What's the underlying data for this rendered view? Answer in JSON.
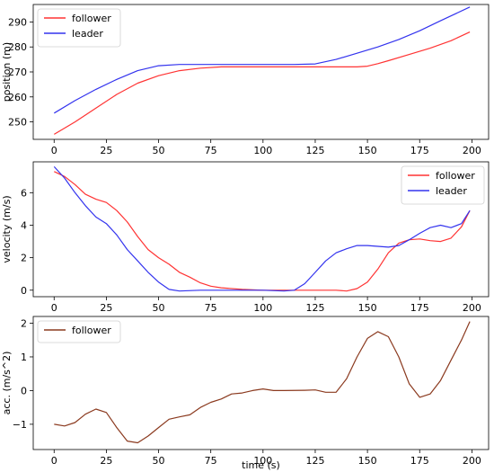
{
  "chart_data": [
    {
      "type": "line",
      "xlabel": "",
      "ylabel": "position (m)",
      "xlim": [
        -10,
        208
      ],
      "ylim": [
        243,
        297
      ],
      "xticks": [
        0,
        25,
        50,
        75,
        100,
        125,
        150,
        175,
        200
      ],
      "yticks": [
        250,
        260,
        270,
        280,
        290
      ],
      "legend_position": "top-left",
      "series": [
        {
          "name": "follower",
          "color": "#ff3333",
          "points": [
            [
              0,
              245
            ],
            [
              10,
              250
            ],
            [
              20,
              255.5
            ],
            [
              30,
              261
            ],
            [
              40,
              265.5
            ],
            [
              50,
              268.5
            ],
            [
              60,
              270.5
            ],
            [
              70,
              271.5
            ],
            [
              80,
              272
            ],
            [
              100,
              272
            ],
            [
              125,
              272
            ],
            [
              145,
              272
            ],
            [
              150,
              272.3
            ],
            [
              155,
              273.3
            ],
            [
              160,
              274.5
            ],
            [
              170,
              277
            ],
            [
              180,
              279.5
            ],
            [
              190,
              282.5
            ],
            [
              199,
              286
            ]
          ]
        },
        {
          "name": "leader",
          "color": "#3333ee",
          "points": [
            [
              0,
              253.5
            ],
            [
              10,
              258.5
            ],
            [
              20,
              263
            ],
            [
              30,
              267
            ],
            [
              40,
              270.5
            ],
            [
              50,
              272.5
            ],
            [
              60,
              273
            ],
            [
              80,
              273
            ],
            [
              100,
              273
            ],
            [
              115,
              273
            ],
            [
              125,
              273.2
            ],
            [
              135,
              275
            ],
            [
              145,
              277.5
            ],
            [
              155,
              280
            ],
            [
              165,
              283
            ],
            [
              175,
              286.5
            ],
            [
              185,
              290.5
            ],
            [
              199,
              296
            ]
          ]
        }
      ]
    },
    {
      "type": "line",
      "xlabel": "",
      "ylabel": "velocity (m/s)",
      "xlim": [
        -10,
        208
      ],
      "ylim": [
        -0.4,
        7.9
      ],
      "xticks": [
        0,
        25,
        50,
        75,
        100,
        125,
        150,
        175,
        200
      ],
      "yticks": [
        0,
        2,
        4,
        6
      ],
      "legend_position": "top-right",
      "series": [
        {
          "name": "follower",
          "color": "#ff3333",
          "points": [
            [
              0,
              7.3
            ],
            [
              5,
              7.0
            ],
            [
              10,
              6.5
            ],
            [
              15,
              5.9
            ],
            [
              20,
              5.6
            ],
            [
              25,
              5.4
            ],
            [
              30,
              4.9
            ],
            [
              35,
              4.2
            ],
            [
              40,
              3.3
            ],
            [
              45,
              2.5
            ],
            [
              50,
              2.0
            ],
            [
              55,
              1.6
            ],
            [
              60,
              1.1
            ],
            [
              65,
              0.8
            ],
            [
              70,
              0.45
            ],
            [
              75,
              0.25
            ],
            [
              80,
              0.15
            ],
            [
              90,
              0.05
            ],
            [
              100,
              0.0
            ],
            [
              110,
              0.0
            ],
            [
              125,
              0.0
            ],
            [
              135,
              0.0
            ],
            [
              140,
              -0.05
            ],
            [
              145,
              0.1
            ],
            [
              150,
              0.5
            ],
            [
              155,
              1.3
            ],
            [
              160,
              2.3
            ],
            [
              165,
              2.9
            ],
            [
              170,
              3.1
            ],
            [
              175,
              3.15
            ],
            [
              180,
              3.05
            ],
            [
              185,
              3.0
            ],
            [
              190,
              3.2
            ],
            [
              195,
              3.9
            ],
            [
              199,
              4.9
            ]
          ]
        },
        {
          "name": "leader",
          "color": "#3333ee",
          "points": [
            [
              0,
              7.6
            ],
            [
              5,
              6.9
            ],
            [
              10,
              6.0
            ],
            [
              15,
              5.2
            ],
            [
              20,
              4.5
            ],
            [
              25,
              4.1
            ],
            [
              30,
              3.4
            ],
            [
              35,
              2.5
            ],
            [
              40,
              1.8
            ],
            [
              45,
              1.1
            ],
            [
              50,
              0.5
            ],
            [
              55,
              0.05
            ],
            [
              60,
              -0.05
            ],
            [
              70,
              0.0
            ],
            [
              80,
              0.0
            ],
            [
              100,
              0.0
            ],
            [
              110,
              -0.05
            ],
            [
              115,
              0.0
            ],
            [
              120,
              0.4
            ],
            [
              125,
              1.1
            ],
            [
              130,
              1.8
            ],
            [
              135,
              2.3
            ],
            [
              140,
              2.55
            ],
            [
              145,
              2.75
            ],
            [
              150,
              2.75
            ],
            [
              155,
              2.7
            ],
            [
              160,
              2.65
            ],
            [
              165,
              2.75
            ],
            [
              170,
              3.1
            ],
            [
              175,
              3.5
            ],
            [
              180,
              3.85
            ],
            [
              185,
              4.0
            ],
            [
              190,
              3.85
            ],
            [
              195,
              4.1
            ],
            [
              199,
              4.9
            ]
          ]
        }
      ]
    },
    {
      "type": "line",
      "xlabel": "time (s)",
      "ylabel": "acc. (m/s^2)",
      "xlim": [
        -10,
        208
      ],
      "ylim": [
        -1.75,
        2.2
      ],
      "xticks": [
        0,
        25,
        50,
        75,
        100,
        125,
        150,
        175,
        200
      ],
      "yticks": [
        -1,
        0,
        1,
        2
      ],
      "legend_position": "top-left",
      "series": [
        {
          "name": "follower",
          "color": "#8b3a1f",
          "points": [
            [
              0,
              -1.0
            ],
            [
              5,
              -1.05
            ],
            [
              10,
              -0.95
            ],
            [
              15,
              -0.7
            ],
            [
              20,
              -0.55
            ],
            [
              25,
              -0.65
            ],
            [
              30,
              -1.1
            ],
            [
              35,
              -1.5
            ],
            [
              40,
              -1.55
            ],
            [
              45,
              -1.35
            ],
            [
              50,
              -1.1
            ],
            [
              55,
              -0.85
            ],
            [
              60,
              -0.78
            ],
            [
              65,
              -0.72
            ],
            [
              70,
              -0.5
            ],
            [
              75,
              -0.35
            ],
            [
              80,
              -0.25
            ],
            [
              85,
              -0.1
            ],
            [
              90,
              -0.07
            ],
            [
              95,
              0.0
            ],
            [
              100,
              0.05
            ],
            [
              105,
              0.0
            ],
            [
              110,
              0.0
            ],
            [
              120,
              0.01
            ],
            [
              125,
              0.02
            ],
            [
              130,
              -0.05
            ],
            [
              135,
              -0.05
            ],
            [
              140,
              0.35
            ],
            [
              145,
              1.0
            ],
            [
              150,
              1.55
            ],
            [
              155,
              1.75
            ],
            [
              160,
              1.6
            ],
            [
              165,
              1.0
            ],
            [
              170,
              0.2
            ],
            [
              175,
              -0.2
            ],
            [
              180,
              -0.1
            ],
            [
              185,
              0.3
            ],
            [
              190,
              0.9
            ],
            [
              195,
              1.5
            ],
            [
              199,
              2.05
            ]
          ]
        }
      ]
    }
  ],
  "colors": {
    "axes_edge": "#000000",
    "background": "#ffffff"
  }
}
